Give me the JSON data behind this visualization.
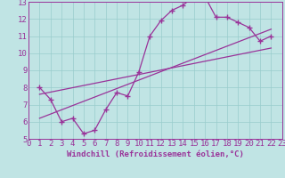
{
  "xlabel": "Windchill (Refroidissement éolien,°C)",
  "xlim": [
    0,
    23
  ],
  "ylim": [
    5,
    13
  ],
  "xticks": [
    0,
    1,
    2,
    3,
    4,
    5,
    6,
    7,
    8,
    9,
    10,
    11,
    12,
    13,
    14,
    15,
    16,
    17,
    18,
    19,
    20,
    21,
    22,
    23
  ],
  "yticks": [
    5,
    6,
    7,
    8,
    9,
    10,
    11,
    12,
    13
  ],
  "bg_color": "#c0e4e4",
  "line_color": "#993399",
  "grid_color": "#99cccc",
  "axis_label_bar_color": "#660066",
  "main_line_x": [
    1,
    2,
    3,
    4,
    5,
    6,
    7,
    8,
    9,
    10,
    11,
    12,
    13,
    14,
    15,
    16,
    17,
    18,
    19,
    20,
    21,
    22
  ],
  "main_line_y": [
    8.0,
    7.3,
    6.0,
    6.2,
    5.3,
    5.5,
    6.7,
    7.7,
    7.5,
    8.9,
    11.0,
    11.9,
    12.5,
    12.8,
    13.3,
    13.3,
    12.1,
    12.1,
    11.8,
    11.5,
    10.7,
    11.0
  ],
  "diag_line1_x": [
    1,
    22
  ],
  "diag_line1_y": [
    7.6,
    10.3
  ],
  "diag_line2_x": [
    1,
    22
  ],
  "diag_line2_y": [
    6.2,
    11.4
  ],
  "tick_fontsize": 6.5,
  "xlabel_fontsize": 6.5
}
